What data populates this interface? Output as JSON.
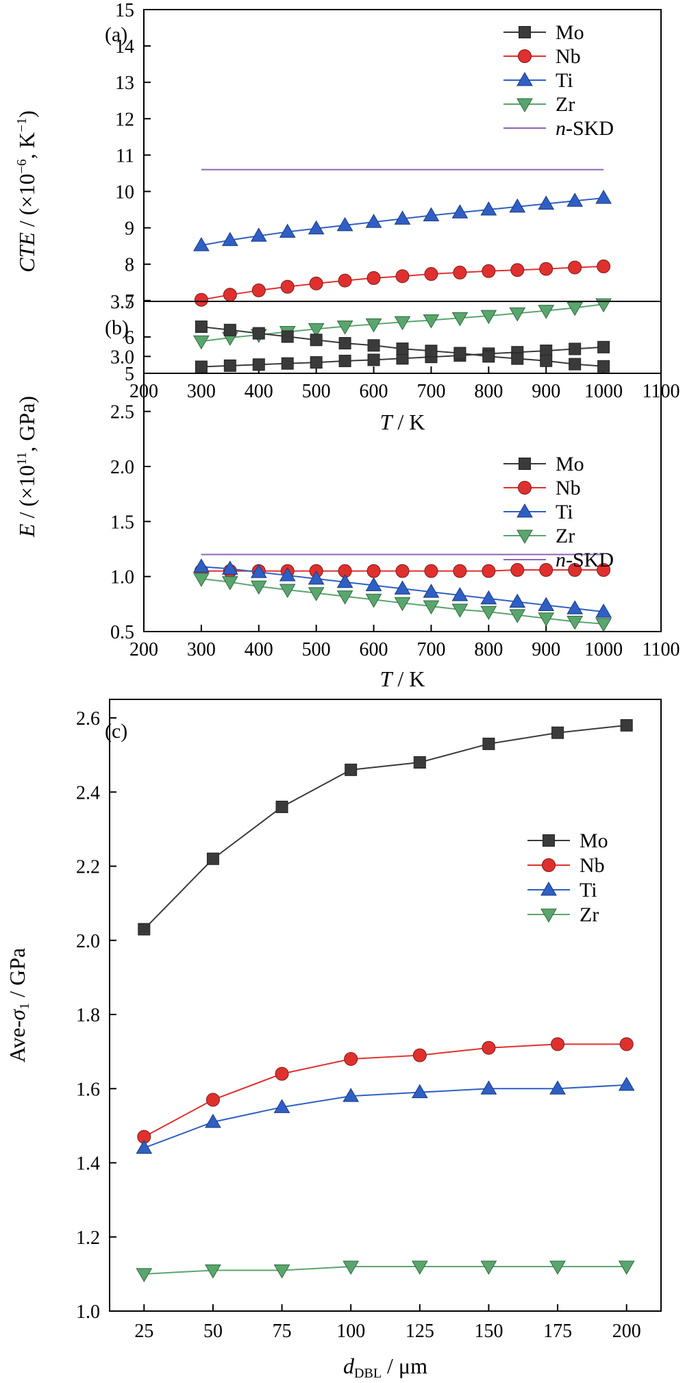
{
  "chart_data": [
    {
      "type": "line",
      "panel_label": "(a)",
      "xlabel": {
        "var": "T",
        "unit": " / K"
      },
      "ylabel": {
        "var": "CTE",
        "unit": " / (×10",
        "exp": "−6",
        "rest": ", K",
        "exp2": "−1",
        "close": ")"
      },
      "xlim": [
        200,
        1100
      ],
      "ylim": [
        5,
        15
      ],
      "xticks": [
        "200",
        "300",
        "400",
        "500",
        "600",
        "700",
        "800",
        "900",
        "1000",
        "1100"
      ],
      "yticks": [
        "5",
        "6",
        "7",
        "8",
        "9",
        "10",
        "11",
        "12",
        "13",
        "14",
        "15"
      ],
      "x": [
        300,
        350,
        400,
        450,
        500,
        550,
        600,
        650,
        700,
        750,
        800,
        850,
        900,
        950,
        1000
      ],
      "series": [
        {
          "name": "Mo",
          "color": "#3a3a3a",
          "marker": "square",
          "values": [
            5.18,
            5.21,
            5.24,
            5.27,
            5.3,
            5.34,
            5.37,
            5.41,
            5.45,
            5.49,
            5.54,
            5.58,
            5.62,
            5.67,
            5.72
          ]
        },
        {
          "name": "Nb",
          "color": "#e0302e",
          "marker": "circle",
          "values": [
            7.02,
            7.16,
            7.28,
            7.38,
            7.47,
            7.55,
            7.62,
            7.67,
            7.73,
            7.77,
            7.81,
            7.84,
            7.87,
            7.91,
            7.94
          ]
        },
        {
          "name": "Ti",
          "color": "#2f5fc4",
          "marker": "triangle-up",
          "values": [
            8.52,
            8.66,
            8.78,
            8.89,
            8.98,
            9.07,
            9.16,
            9.25,
            9.34,
            9.42,
            9.5,
            9.58,
            9.66,
            9.74,
            9.82
          ]
        },
        {
          "name": "Zr",
          "color": "#5aa56e",
          "marker": "triangle-down",
          "values": [
            5.88,
            5.98,
            6.06,
            6.14,
            6.22,
            6.29,
            6.35,
            6.41,
            6.46,
            6.52,
            6.58,
            6.65,
            6.72,
            6.8,
            6.9
          ]
        },
        {
          "name": "n-SKD",
          "name_italic": "n",
          "name_rest": "-SKD",
          "color": "#8e63b5",
          "marker": "none",
          "x": [
            300,
            1000
          ],
          "values": [
            10.6,
            10.6
          ]
        }
      ],
      "legend_position": "top-right"
    },
    {
      "type": "line",
      "panel_label": "(b)",
      "xlabel": {
        "var": "T",
        "unit": " / K"
      },
      "ylabel": {
        "var": "E",
        "unit": " / (×10",
        "exp": "11",
        "rest": ", GPa)"
      },
      "xlim": [
        200,
        1100
      ],
      "ylim": [
        0.5,
        3.5
      ],
      "xticks": [
        "200",
        "300",
        "400",
        "500",
        "600",
        "700",
        "800",
        "900",
        "1000",
        "1100"
      ],
      "yticks": [
        "0.5",
        "1.0",
        "1.5",
        "2.0",
        "2.5",
        "3.0",
        "3.5"
      ],
      "x": [
        300,
        350,
        400,
        450,
        500,
        550,
        600,
        650,
        700,
        750,
        800,
        850,
        900,
        950,
        1000
      ],
      "series": [
        {
          "name": "Mo",
          "color": "#3a3a3a",
          "marker": "square",
          "values": [
            3.27,
            3.24,
            3.21,
            3.18,
            3.15,
            3.12,
            3.1,
            3.07,
            3.05,
            3.03,
            3.0,
            2.98,
            2.96,
            2.93,
            2.91
          ]
        },
        {
          "name": "Nb",
          "color": "#e0302e",
          "marker": "circle",
          "values": [
            1.05,
            1.05,
            1.05,
            1.05,
            1.05,
            1.05,
            1.05,
            1.05,
            1.05,
            1.05,
            1.05,
            1.06,
            1.06,
            1.06,
            1.06
          ]
        },
        {
          "name": "Ti",
          "color": "#2f5fc4",
          "marker": "triangle-up",
          "values": [
            1.09,
            1.07,
            1.04,
            1.01,
            0.98,
            0.95,
            0.92,
            0.89,
            0.86,
            0.83,
            0.8,
            0.77,
            0.74,
            0.71,
            0.68
          ]
        },
        {
          "name": "Zr",
          "color": "#5aa56e",
          "marker": "triangle-down",
          "values": [
            0.98,
            0.95,
            0.91,
            0.88,
            0.85,
            0.82,
            0.79,
            0.76,
            0.73,
            0.7,
            0.68,
            0.65,
            0.62,
            0.59,
            0.57
          ]
        },
        {
          "name": "n-SKD",
          "name_italic": "n",
          "name_rest": "-SKD",
          "color": "#8e63b5",
          "marker": "none",
          "x": [
            300,
            1000
          ],
          "values": [
            1.2,
            1.2
          ]
        }
      ],
      "legend_position": "center-right"
    },
    {
      "type": "line",
      "panel_label": "(c)",
      "xlabel": {
        "var": "d",
        "sub": "DBL",
        "unit": " / μm"
      },
      "ylabel": {
        "pre": "Ave-",
        "var": "σ",
        "sub": "1",
        "unit": " / GPa"
      },
      "xlim": [
        12.5,
        212.5
      ],
      "ylim": [
        1.0,
        2.65
      ],
      "xticks": [
        "25",
        "50",
        "75",
        "100",
        "125",
        "150",
        "175",
        "200"
      ],
      "yticks": [
        "1.0",
        "1.2",
        "1.4",
        "1.6",
        "1.8",
        "2.0",
        "2.2",
        "2.4",
        "2.6"
      ],
      "x": [
        25,
        50,
        75,
        100,
        125,
        150,
        175,
        200
      ],
      "series": [
        {
          "name": "Mo",
          "color": "#3a3a3a",
          "marker": "square",
          "values": [
            2.03,
            2.22,
            2.36,
            2.46,
            2.48,
            2.53,
            2.56,
            2.58
          ]
        },
        {
          "name": "Nb",
          "color": "#e0302e",
          "marker": "circle",
          "values": [
            1.47,
            1.57,
            1.64,
            1.68,
            1.69,
            1.71,
            1.72,
            1.72
          ]
        },
        {
          "name": "Ti",
          "color": "#2f5fc4",
          "marker": "triangle-up",
          "values": [
            1.44,
            1.51,
            1.55,
            1.58,
            1.59,
            1.6,
            1.6,
            1.61
          ]
        },
        {
          "name": "Zr",
          "color": "#5aa56e",
          "marker": "triangle-down",
          "values": [
            1.1,
            1.11,
            1.11,
            1.12,
            1.12,
            1.12,
            1.12,
            1.12
          ]
        }
      ],
      "legend_position": "center-right"
    }
  ]
}
